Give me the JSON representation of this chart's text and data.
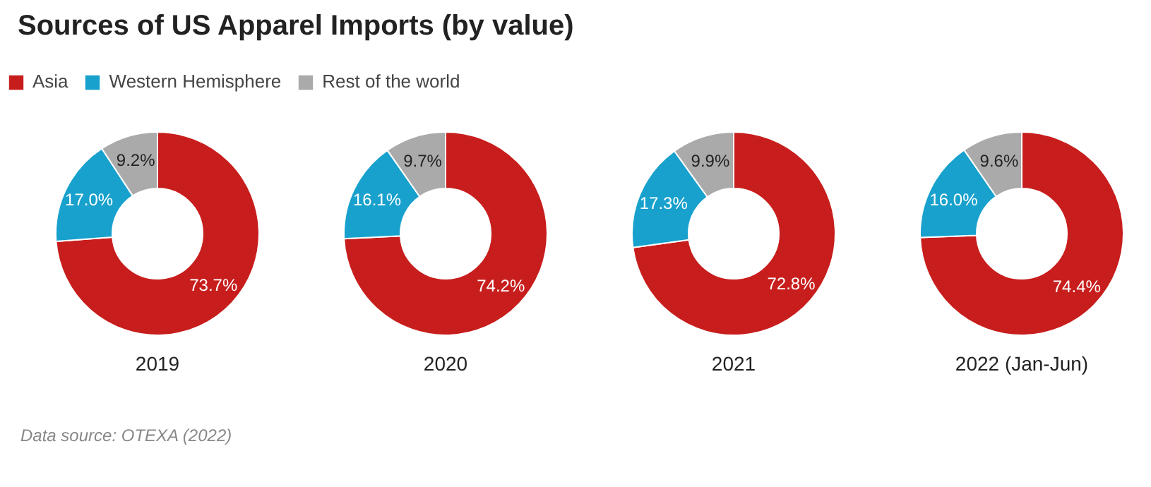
{
  "chart_data": [
    {
      "type": "donut",
      "title": "Sources of US Apparel Imports (by value)",
      "legend": "top right",
      "xlabel": "2019",
      "categories": [
        "Asia",
        "Western Hemisphere",
        "Rest of the world"
      ],
      "values": [
        73.7,
        17.0,
        9.2
      ],
      "value_labels": [
        "73.7%",
        "17.0%",
        "9.2%"
      ],
      "colors": [
        "#c71e1d",
        "#18a1cd",
        "#aaaaaa"
      ],
      "annotations": [
        "Data source: OTEXA (2022)"
      ]
    },
    {
      "type": "donut",
      "xlabel": "2020",
      "values": [
        74.2,
        16.1,
        9.7
      ],
      "value_labels": [
        "74.2%",
        "16.1%",
        "9.7%"
      ],
      "colors": [
        "#c71e1d",
        "#18a1cd",
        "#aaaaaa"
      ]
    },
    {
      "type": "donut",
      "xlabel": "2021",
      "values": [
        72.8,
        17.3,
        9.9
      ],
      "value_labels": [
        "72.8%",
        "17.3%",
        "9.9%"
      ],
      "colors": [
        "#c71e1d",
        "#18a1cd",
        "#aaaaaa"
      ]
    },
    {
      "type": "donut",
      "xlabel": "2022 (Jan-Jun)",
      "values": [
        74.4,
        16.0,
        9.6
      ],
      "value_labels": [
        "74.4%",
        "16.0%",
        "9.6%"
      ],
      "colors": [
        "#c71e1d",
        "#18a1cd",
        "#aaaaaa"
      ]
    }
  ]
}
